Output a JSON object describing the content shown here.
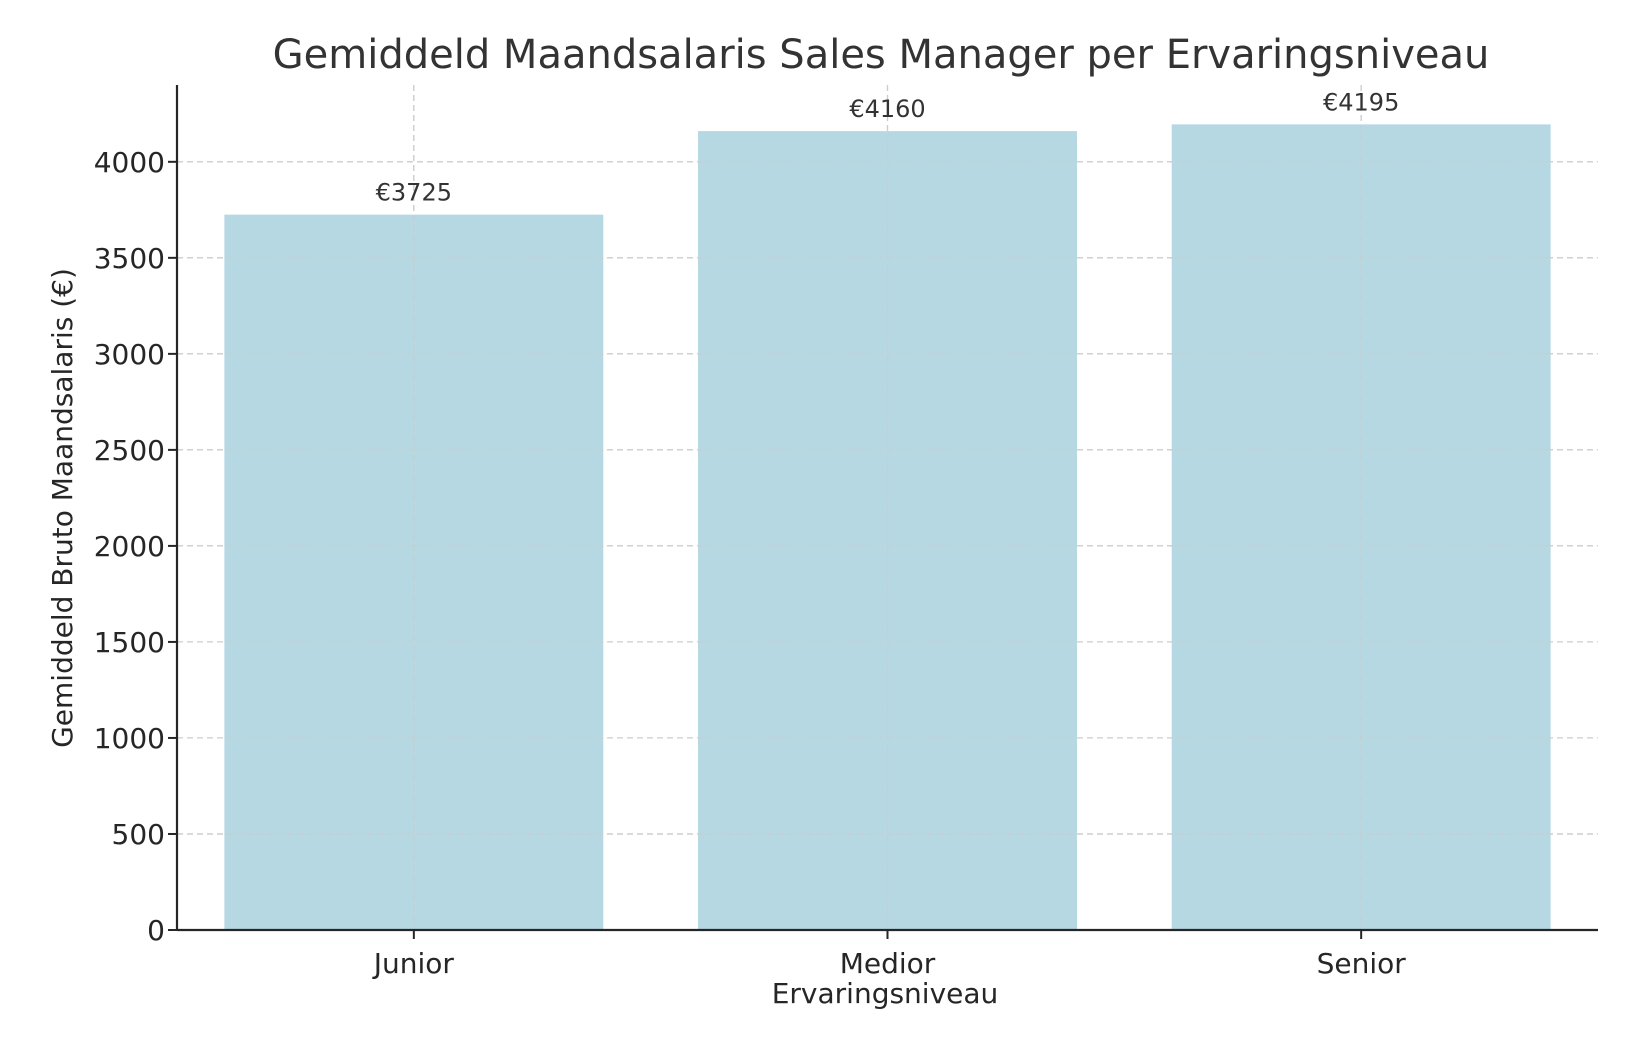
{
  "chart_data": {
    "type": "bar",
    "title": "Gemiddeld Maandsalaris Sales Manager per Ervaringsniveau",
    "xlabel": "Ervaringsniveau",
    "ylabel": "Gemiddeld Bruto Maandsalaris (€)",
    "categories": [
      "Junior",
      "Medior",
      "Senior"
    ],
    "values": [
      3725,
      4160,
      4195
    ],
    "data_labels": [
      "€3725",
      "€4160",
      "€4195"
    ],
    "ylim": [
      0,
      4400
    ],
    "yticks": [
      0,
      500,
      1000,
      1500,
      2000,
      2500,
      3000,
      3500,
      4000
    ],
    "grid": true,
    "bar_color": "#b6d8e3"
  }
}
